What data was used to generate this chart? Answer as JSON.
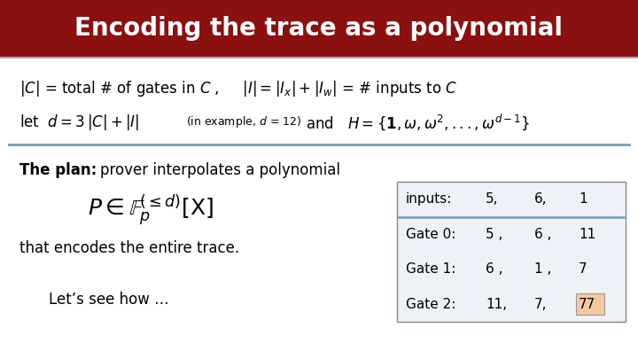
{
  "title": "Encoding the trace as a polynomial",
  "title_bg": "#8B1010",
  "title_fg": "#FFFFFF",
  "bg_color": "#FFFFFF",
  "divider_color": "#7799BB",
  "table_border": "#888888",
  "table_bg": "#EEF2F7",
  "highlight_bg": "#F5C9A0",
  "highlight_border": "#999999",
  "table_header": [
    "inputs:",
    "5,",
    "6,",
    "1"
  ],
  "table_rows": [
    [
      "Gate 0:",
      "5 ,",
      "6 ,",
      "11"
    ],
    [
      "Gate 1:",
      "6 ,",
      "1 ,",
      "7"
    ],
    [
      "Gate 2:",
      "11,",
      "7,",
      "77"
    ]
  ]
}
